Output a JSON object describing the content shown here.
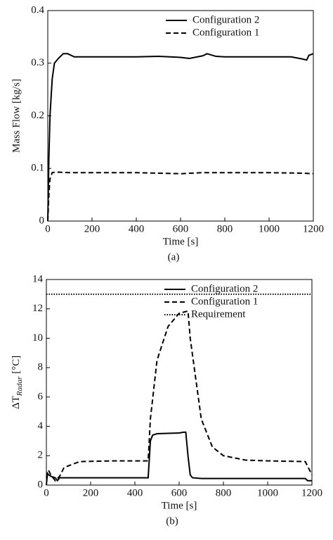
{
  "chart_data": [
    {
      "type": "line",
      "caption": "(a)",
      "xlabel": "Time [s]",
      "ylabel": "Mass Flow [kg/s]",
      "xlim": [
        0,
        1200
      ],
      "xticks": [
        0,
        200,
        400,
        600,
        800,
        1000,
        1200
      ],
      "ylim": [
        0,
        0.4
      ],
      "yticks": [
        0,
        0.1,
        0.2,
        0.3,
        0.4
      ],
      "legend": "upper right",
      "series": [
        {
          "name": "Configuration 2",
          "color": "#000000",
          "dash": "solid",
          "x": [
            0,
            5,
            10,
            20,
            30,
            50,
            70,
            90,
            120,
            200,
            400,
            500,
            600,
            640,
            700,
            720,
            760,
            800,
            1000,
            1100,
            1150,
            1170,
            1180,
            1200
          ],
          "values": [
            0,
            0.12,
            0.2,
            0.27,
            0.3,
            0.31,
            0.318,
            0.318,
            0.312,
            0.312,
            0.312,
            0.313,
            0.311,
            0.309,
            0.314,
            0.318,
            0.313,
            0.312,
            0.312,
            0.312,
            0.308,
            0.306,
            0.315,
            0.318
          ]
        },
        {
          "name": "Configuration 1",
          "color": "#000000",
          "dash": "dashed",
          "x": [
            0,
            5,
            10,
            20,
            40,
            100,
            400,
            600,
            700,
            1000,
            1150,
            1200
          ],
          "values": [
            0,
            0.05,
            0.08,
            0.092,
            0.093,
            0.092,
            0.092,
            0.09,
            0.092,
            0.092,
            0.091,
            0.09
          ]
        }
      ]
    },
    {
      "type": "line",
      "caption": "(b)",
      "xlabel": "Time [s]",
      "ylabel": {
        "main": "ΔT",
        "sub": "Radar",
        "unit": "[°C]"
      },
      "xlim": [
        0,
        1200
      ],
      "xticks": [
        0,
        200,
        400,
        600,
        800,
        1000,
        1200
      ],
      "ylim": [
        0,
        14
      ],
      "yticks": [
        0,
        2,
        4,
        6,
        8,
        10,
        12,
        14
      ],
      "legend": "upper right",
      "series": [
        {
          "name": "Configuration 2",
          "color": "#000000",
          "dash": "solid",
          "x": [
            0,
            5,
            10,
            20,
            40,
            50,
            60,
            460,
            470,
            480,
            500,
            600,
            620,
            630,
            640,
            650,
            660,
            700,
            1000,
            1170,
            1180,
            1200
          ],
          "values": [
            0,
            0.8,
            0.7,
            0.6,
            0.5,
            0.3,
            0.5,
            0.5,
            3.0,
            3.4,
            3.5,
            3.55,
            3.6,
            3.6,
            2.0,
            0.7,
            0.5,
            0.45,
            0.45,
            0.45,
            0.3,
            0.3
          ]
        },
        {
          "name": "Configuration 1",
          "color": "#000000",
          "dash": "dashed",
          "x": [
            0,
            10,
            20,
            40,
            60,
            80,
            150,
            300,
            460,
            470,
            500,
            550,
            600,
            640,
            650,
            700,
            750,
            800,
            900,
            1000,
            1170,
            1190,
            1200
          ],
          "values": [
            0.5,
            1.0,
            0.7,
            0.3,
            0.6,
            1.2,
            1.6,
            1.65,
            1.65,
            4.5,
            8.5,
            10.8,
            11.7,
            11.85,
            10,
            4.5,
            2.6,
            2.0,
            1.7,
            1.65,
            1.6,
            1.0,
            0.7
          ]
        },
        {
          "name": "Requirement",
          "color": "#000000",
          "dash": "dotted",
          "x": [
            0,
            1200
          ],
          "values": [
            13,
            13
          ]
        }
      ]
    }
  ]
}
